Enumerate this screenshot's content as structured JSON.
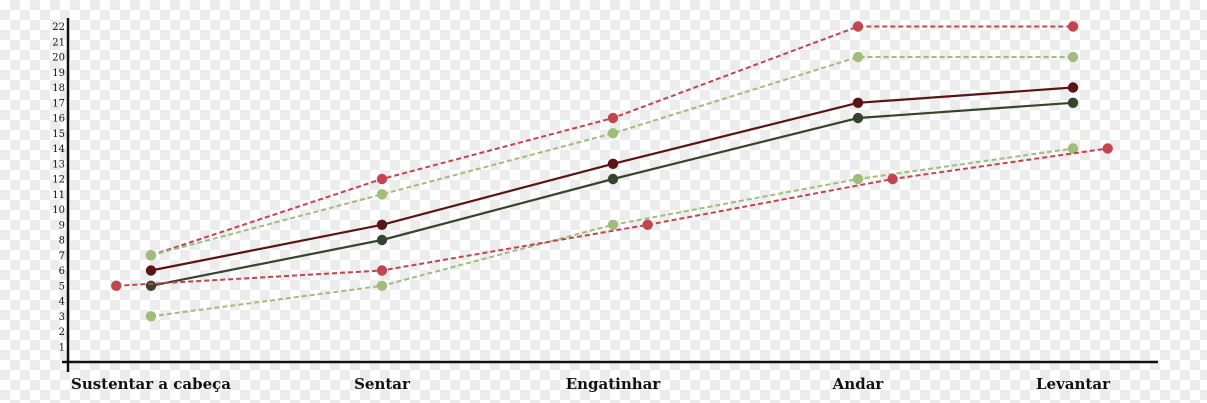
{
  "chart_data": {
    "type": "line",
    "title": "",
    "xlabel": "",
    "ylabel": "",
    "categories": [
      "Sustentar a cabeça",
      "Sentar",
      "Engatinhar",
      "Andar",
      "Levantar"
    ],
    "ylim": [
      0,
      22
    ],
    "yticks": [
      1,
      2,
      3,
      4,
      5,
      6,
      7,
      8,
      9,
      10,
      11,
      12,
      13,
      14,
      15,
      16,
      17,
      18,
      19,
      20,
      21,
      22
    ],
    "grid": false,
    "legend": "none",
    "series": [
      {
        "values": [
          7,
          12,
          16,
          22,
          22
        ],
        "color": "#c2444f",
        "style": "dashed",
        "index_offsets": [
          0,
          0,
          0,
          0,
          0
        ]
      },
      {
        "values": [
          7,
          11,
          15,
          20,
          20
        ],
        "color": "#9fbd7c",
        "style": "dashed",
        "index_offsets": [
          0,
          0,
          0,
          0,
          0
        ]
      },
      {
        "values": [
          6,
          9,
          13,
          17,
          18
        ],
        "color": "#5a1414",
        "style": "solid",
        "index_offsets": [
          0,
          0,
          0,
          0,
          0
        ]
      },
      {
        "values": [
          5,
          8,
          12,
          16,
          17
        ],
        "color": "#34452c",
        "style": "solid",
        "index_offsets": [
          0,
          0,
          0,
          0,
          0
        ]
      },
      {
        "values": [
          3,
          5,
          9,
          12,
          14
        ],
        "color": "#9fbd7c",
        "style": "dashed",
        "index_offsets": [
          0,
          0,
          0,
          0,
          0
        ]
      },
      {
        "values": [
          5,
          6,
          9,
          12,
          14
        ],
        "color": "#c2444f",
        "style": "dashed",
        "index_offsets": [
          -0.15,
          0,
          0.15,
          0.15,
          0.15
        ]
      }
    ]
  }
}
